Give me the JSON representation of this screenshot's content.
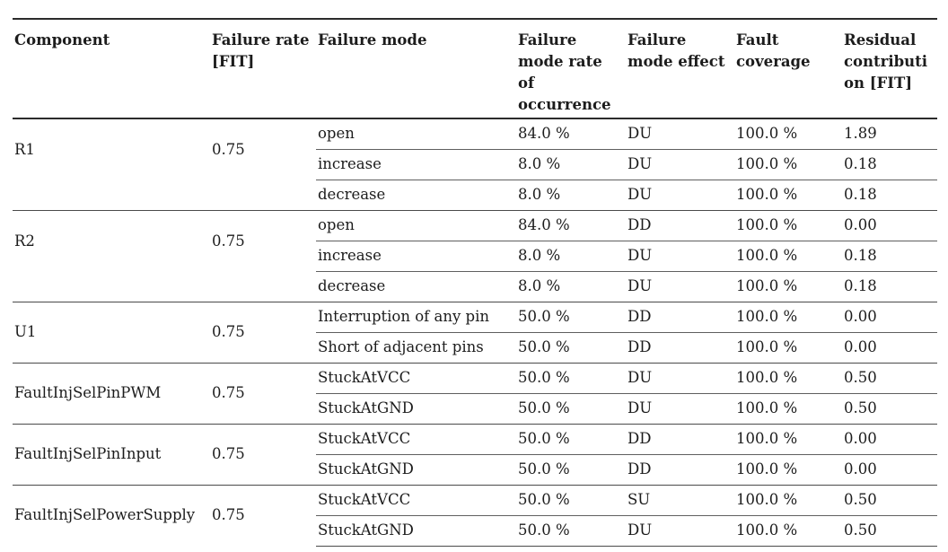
{
  "page": {
    "background": "#ffffff",
    "text_color": "#1c1c1c",
    "rule_color": "#2b2b2b"
  },
  "table": {
    "columns": [
      "Component",
      "Failure rate [FIT]",
      "Failure mode",
      "Failure mode rate of occurrence",
      "Failure mode effect",
      "Fault coverage",
      "Residual contribution [FIT]"
    ],
    "groups": [
      {
        "component": "R1",
        "failure_rate": "0.75",
        "rows": [
          {
            "mode": "open",
            "rate_of_occurrence": "84.0 %",
            "effect": "DU",
            "coverage": "100.0 %",
            "residual": "1.89"
          },
          {
            "mode": "increase",
            "rate_of_occurrence": "8.0 %",
            "effect": "DU",
            "coverage": "100.0 %",
            "residual": "0.18"
          },
          {
            "mode": "decrease",
            "rate_of_occurrence": "8.0 %",
            "effect": "DU",
            "coverage": "100.0 %",
            "residual": "0.18"
          }
        ]
      },
      {
        "component": "R2",
        "failure_rate": "0.75",
        "rows": [
          {
            "mode": "open",
            "rate_of_occurrence": "84.0 %",
            "effect": "DD",
            "coverage": "100.0 %",
            "residual": "0.00"
          },
          {
            "mode": "increase",
            "rate_of_occurrence": "8.0 %",
            "effect": "DU",
            "coverage": "100.0 %",
            "residual": "0.18"
          },
          {
            "mode": "decrease",
            "rate_of_occurrence": "8.0 %",
            "effect": "DU",
            "coverage": "100.0 %",
            "residual": "0.18"
          }
        ]
      },
      {
        "component": "U1",
        "failure_rate": "0.75",
        "rows": [
          {
            "mode": "Interruption of any pin",
            "rate_of_occurrence": "50.0 %",
            "effect": "DD",
            "coverage": "100.0 %",
            "residual": "0.00"
          },
          {
            "mode": "Short of adjacent pins",
            "rate_of_occurrence": "50.0 %",
            "effect": "DD",
            "coverage": "100.0 %",
            "residual": "0.00"
          }
        ]
      },
      {
        "component": "FaultInjSelPinPWM",
        "failure_rate": "0.75",
        "rows": [
          {
            "mode": "StuckAtVCC",
            "rate_of_occurrence": "50.0 %",
            "effect": "DU",
            "coverage": "100.0 %",
            "residual": "0.50"
          },
          {
            "mode": "StuckAtGND",
            "rate_of_occurrence": "50.0 %",
            "effect": "DU",
            "coverage": "100.0 %",
            "residual": "0.50"
          }
        ]
      },
      {
        "component": "FaultInjSelPinInput",
        "failure_rate": "0.75",
        "rows": [
          {
            "mode": "StuckAtVCC",
            "rate_of_occurrence": "50.0 %",
            "effect": "DD",
            "coverage": "100.0 %",
            "residual": "0.00"
          },
          {
            "mode": "StuckAtGND",
            "rate_of_occurrence": "50.0 %",
            "effect": "DD",
            "coverage": "100.0 %",
            "residual": "0.00"
          }
        ]
      },
      {
        "component": "FaultInjSelPowerSupply",
        "failure_rate": "0.75",
        "rows": [
          {
            "mode": "StuckAtVCC",
            "rate_of_occurrence": "50.0 %",
            "effect": "SU",
            "coverage": "100.0 %",
            "residual": "0.50"
          },
          {
            "mode": "StuckAtGND",
            "rate_of_occurrence": "50.0 %",
            "effect": "DU",
            "coverage": "100.0 %",
            "residual": "0.50"
          }
        ]
      }
    ]
  }
}
